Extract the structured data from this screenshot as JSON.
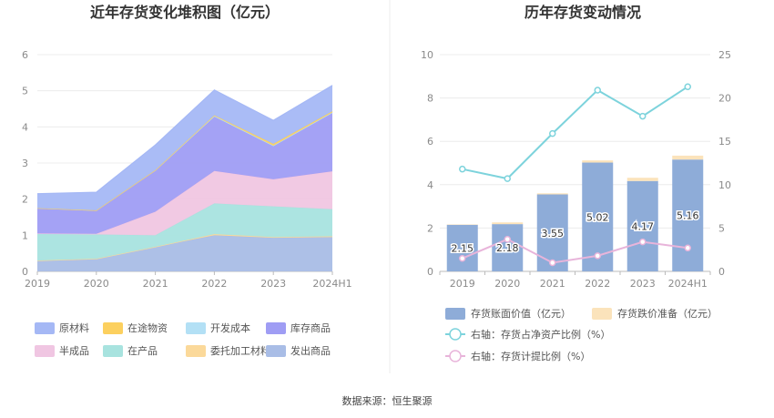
{
  "source_text": "数据来源：恒生聚源",
  "chart_data": [
    {
      "type": "area",
      "stacked": true,
      "title": "近年存货变化堆积图（亿元）",
      "categories": [
        "2019",
        "2020",
        "2021",
        "2022",
        "2023",
        "2024H1"
      ],
      "ylim": [
        0,
        6
      ],
      "yticks": [
        "0",
        "1",
        "2",
        "3",
        "4",
        "5",
        "6"
      ],
      "grid": true,
      "legend_position": "bottom",
      "legend": [
        "原材料",
        "在途物资",
        "开发成本",
        "库存商品",
        "半成品",
        "在产品",
        "委托加工材料",
        "发出商品"
      ],
      "series": [
        {
          "name": "发出商品",
          "color": "#a9bde6",
          "values": [
            0.3,
            0.35,
            0.68,
            1.0,
            0.93,
            0.95
          ]
        },
        {
          "name": "委托加工材料",
          "color": "#fbd99a",
          "values": [
            0.0,
            0.0,
            0.0,
            0.03,
            0.02,
            0.02
          ]
        },
        {
          "name": "在产品",
          "color": "#a8e3df",
          "values": [
            0.75,
            0.67,
            0.32,
            0.85,
            0.85,
            0.75
          ]
        },
        {
          "name": "半成品",
          "color": "#f0c6e2",
          "values": [
            0.0,
            0.02,
            0.65,
            0.9,
            0.75,
            1.05
          ]
        },
        {
          "name": "库存商品",
          "color": "#9f9df4",
          "values": [
            0.7,
            0.65,
            1.15,
            1.52,
            0.93,
            1.63
          ]
        },
        {
          "name": "开发成本",
          "color": "#b3e0f5",
          "values": [
            0.0,
            0.0,
            0.0,
            0.0,
            0.0,
            0.0
          ]
        },
        {
          "name": "在途物资",
          "color": "#fcd05f",
          "values": [
            0.0,
            0.0,
            0.0,
            0.02,
            0.05,
            0.03
          ]
        },
        {
          "name": "原材料",
          "color": "#a5b8f5",
          "values": [
            0.4,
            0.5,
            0.7,
            0.7,
            0.65,
            0.72
          ]
        }
      ]
    },
    {
      "type": "bar",
      "title": "历年存货变动情况",
      "categories": [
        "2019",
        "2020",
        "2021",
        "2022",
        "2023",
        "2024H1"
      ],
      "ylim": [
        0,
        10
      ],
      "yticks": [
        "0",
        "2",
        "4",
        "6",
        "8",
        "10"
      ],
      "y2lim": [
        0,
        25
      ],
      "y2ticks": [
        "0",
        "5",
        "10",
        "15",
        "20",
        "25"
      ],
      "grid": true,
      "legend_position": "bottom",
      "series": [
        {
          "name": "存货账面价值（亿元）",
          "type": "bar",
          "color": "#8eacd8",
          "values": [
            2.15,
            2.18,
            3.55,
            5.02,
            4.17,
            5.16
          ],
          "labels": [
            "2.15",
            "2.18",
            "3.55",
            "5.02",
            "4.17",
            "5.16"
          ]
        },
        {
          "name": "存货跌价准备（亿元）",
          "type": "bar",
          "color": "#fbe3bb",
          "values": [
            0.02,
            0.08,
            0.05,
            0.1,
            0.15,
            0.18
          ]
        },
        {
          "name": "右轴：存货占净资产比例（%）",
          "type": "line",
          "axis": "right",
          "color": "#7dd3dc",
          "values": [
            11.8,
            10.7,
            15.9,
            20.9,
            17.9,
            21.3
          ]
        },
        {
          "name": "右轴：存货计提比例（%）",
          "type": "line",
          "axis": "right",
          "color": "#e8b4da",
          "values": [
            1.5,
            3.7,
            1.0,
            1.8,
            3.4,
            2.7
          ]
        }
      ]
    }
  ]
}
